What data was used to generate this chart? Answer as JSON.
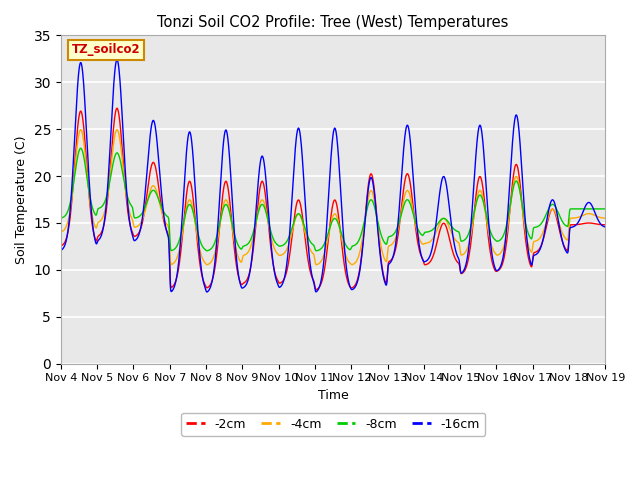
{
  "title": "Tonzi Soil CO2 Profile: Tree (West) Temperatures",
  "xlabel": "Time",
  "ylabel": "Soil Temperature (C)",
  "ylim": [
    0,
    35
  ],
  "yticks": [
    0,
    5,
    10,
    15,
    20,
    25,
    30,
    35
  ],
  "x_labels": [
    "Nov 4",
    "Nov 5",
    "Nov 6",
    "Nov 7",
    "Nov 8",
    "Nov 9",
    "Nov 10",
    "Nov 11",
    "Nov 12",
    "Nov 13",
    "Nov 14",
    "Nov 15",
    "Nov 16",
    "Nov 17",
    "Nov 18",
    "Nov 19"
  ],
  "legend_label": "TZ_soilco2",
  "legend_bg": "#ffffcc",
  "legend_edge": "#cc8800",
  "series_labels": [
    "-2cm",
    "-4cm",
    "-8cm",
    "-16cm"
  ],
  "series_colors": [
    "#ff0000",
    "#ffaa00",
    "#00cc00",
    "#0000ff"
  ],
  "background_color": "#e8e8e8",
  "grid_color": "#ffffff",
  "figsize": [
    6.4,
    4.8
  ],
  "dpi": 100,
  "peak_sharpness": 6.0,
  "n_per_day": 120,
  "n_days": 15,
  "daily_peaks_blue": [
    32.2,
    32.5,
    26.0,
    24.8,
    25.0,
    22.2,
    25.2,
    25.2,
    19.9,
    25.5,
    20.0,
    25.5,
    26.6,
    17.5,
    17.2
  ],
  "daily_peaks_red": [
    27.0,
    27.3,
    21.5,
    19.5,
    19.5,
    19.5,
    17.5,
    17.5,
    20.3,
    20.3,
    15.0,
    20.0,
    21.3,
    16.5,
    15.0
  ],
  "daily_peaks_orange": [
    25.0,
    25.0,
    19.0,
    17.5,
    17.5,
    17.5,
    16.0,
    16.0,
    18.5,
    18.5,
    15.5,
    18.5,
    20.0,
    16.5,
    16.0
  ],
  "daily_peaks_green": [
    23.0,
    22.5,
    18.5,
    17.0,
    17.0,
    17.0,
    16.0,
    15.5,
    17.5,
    17.5,
    15.5,
    18.0,
    19.5,
    17.0,
    16.5
  ],
  "daily_troughs_blue": [
    12.0,
    13.0,
    13.0,
    7.5,
    7.5,
    8.0,
    8.0,
    7.5,
    7.8,
    10.5,
    10.8,
    9.5,
    9.8,
    11.5,
    14.5
  ],
  "daily_troughs_red": [
    12.5,
    13.5,
    13.5,
    8.0,
    8.0,
    8.5,
    8.5,
    7.8,
    8.0,
    10.8,
    10.5,
    9.5,
    9.8,
    11.8,
    14.8
  ],
  "daily_troughs_orange": [
    14.0,
    15.0,
    14.5,
    10.5,
    10.5,
    11.5,
    11.5,
    10.5,
    10.5,
    12.5,
    12.8,
    11.5,
    11.5,
    13.0,
    15.5
  ],
  "daily_troughs_green": [
    15.5,
    16.5,
    15.5,
    12.0,
    12.0,
    12.5,
    12.5,
    12.0,
    12.5,
    13.5,
    14.0,
    13.0,
    13.0,
    14.5,
    16.5
  ]
}
